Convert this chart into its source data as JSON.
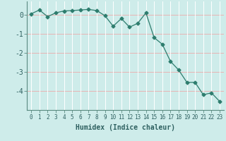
{
  "xlabel": "Humidex (Indice chaleur)",
  "x_values": [
    0,
    1,
    2,
    3,
    4,
    5,
    6,
    7,
    8,
    9,
    10,
    11,
    12,
    13,
    14,
    15,
    16,
    17,
    18,
    19,
    20,
    21,
    22,
    23
  ],
  "y_values": [
    0.05,
    0.25,
    -0.1,
    0.1,
    0.2,
    0.22,
    0.25,
    0.28,
    0.22,
    -0.05,
    -0.6,
    -0.2,
    -0.65,
    -0.45,
    0.1,
    -1.2,
    -1.55,
    -2.45,
    -2.9,
    -3.55,
    -3.55,
    -4.2,
    -4.1,
    -4.55
  ],
  "line_color": "#2e7d6e",
  "marker": "D",
  "marker_size": 2.5,
  "background_color": "#ceecea",
  "grid_color_h": "#e8b4b4",
  "grid_color_v": "#ffffff",
  "ylim": [
    -5.0,
    0.7
  ],
  "yticks": [
    0,
    -1,
    -2,
    -3,
    -4
  ],
  "xlim": [
    -0.5,
    23.5
  ],
  "xlabel_fontsize": 7,
  "tick_fontsize": 5.5,
  "ytick_fontsize": 7
}
